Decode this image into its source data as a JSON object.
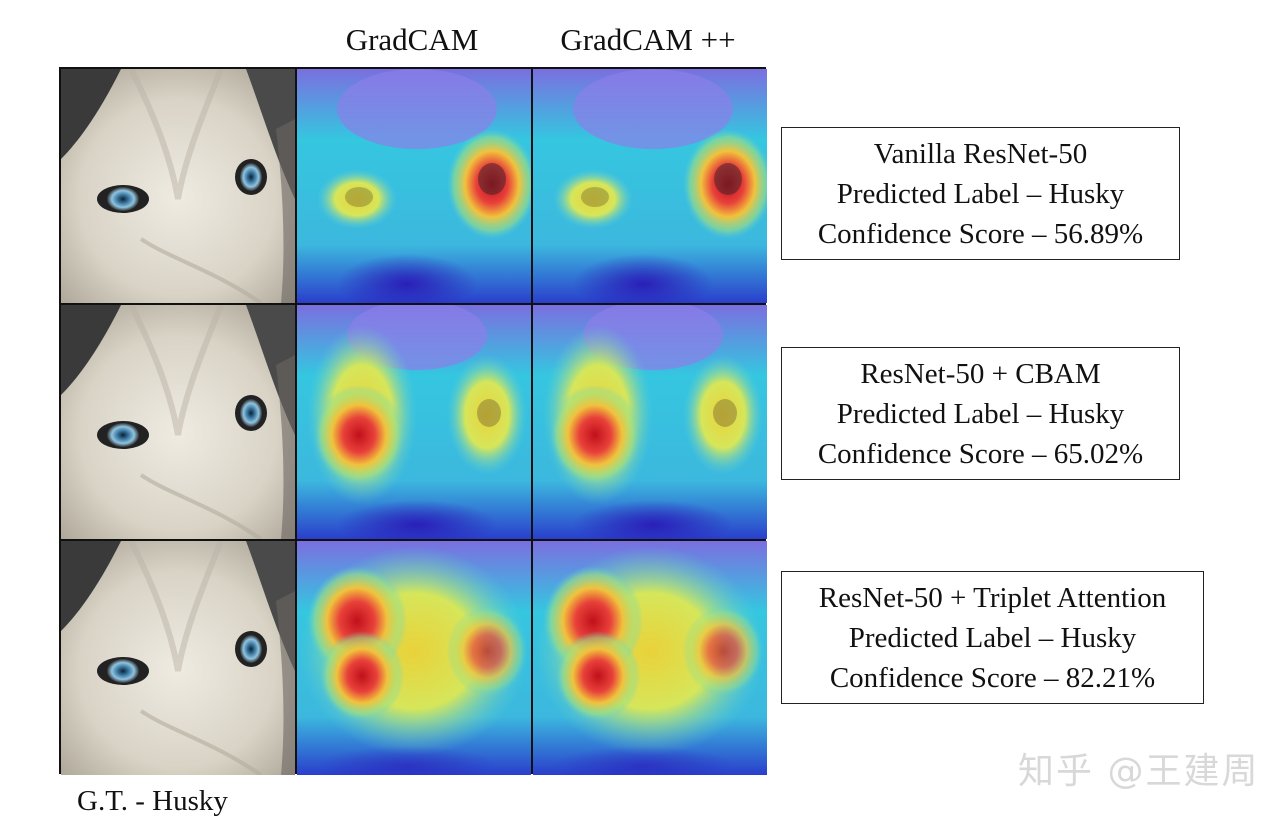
{
  "columns": {
    "gradcam": "GradCAM",
    "gradcampp": "GradCAM ++"
  },
  "rows": [
    {
      "model": "Vanilla ResNet-50",
      "predicted": "Predicted Label – Husky",
      "confidence": "Confidence Score – 56.89%"
    },
    {
      "model": "ResNet-50 + CBAM",
      "predicted": "Predicted Label – Husky",
      "confidence": "Confidence Score – 65.02%"
    },
    {
      "model": "ResNet-50 + Triplet Attention",
      "predicted": "Predicted Label – Husky",
      "confidence": "Confidence Score – 82.21%"
    }
  ],
  "ground_truth": "G.T. - Husky",
  "watermark": "知乎 @王建周"
}
